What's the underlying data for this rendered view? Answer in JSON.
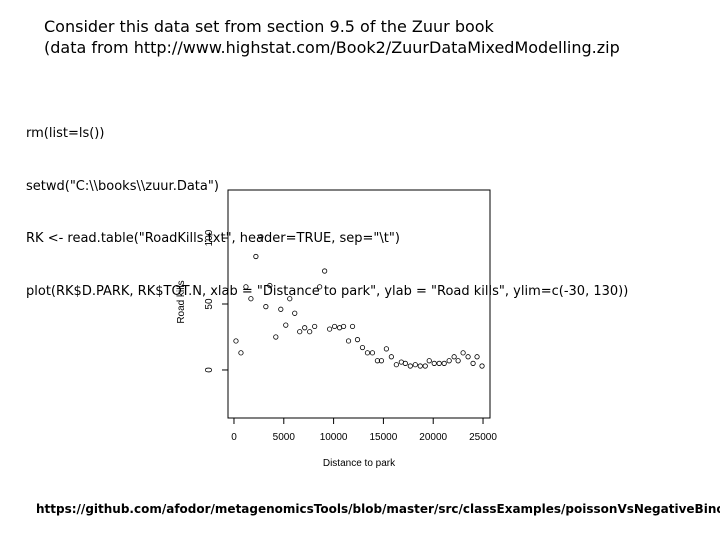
{
  "header": {
    "lines": [
      "Consider this data set from section 9.5 of the Zuur book",
      "(data from http://www.highstat.com/Book2/ZuurDataMixedModelling.zip"
    ]
  },
  "code": {
    "lines": [
      "rm(list=ls())",
      "setwd(\"C:\\\\books\\\\zuur.Data\")",
      "RK <- read.table(\"RoadKills.txt\", header=TRUE, sep=\"\\t\")",
      "plot(RK$D.PARK, RK$TOT.N, xlab = \"Distance to park\", ylab = \"Road kills\", ylim=c(-30, 130))"
    ]
  },
  "footer": {
    "link": "https://github.com/afodor/metagenomicsTools/blob/master/src/classExamples/poissonVsNegativeBinomial"
  },
  "chart_data": {
    "type": "scatter",
    "x_label": "Distance to park",
    "y_label": "Road kills",
    "xlim": [
      -600,
      25700
    ],
    "ylim": [
      -36.4,
      136.4
    ],
    "xticks": [
      0,
      5000,
      10000,
      15000,
      20000,
      25000
    ],
    "yticks": [
      0,
      50,
      100
    ],
    "color": "#000000",
    "x": [
      200,
      700,
      1200,
      1700,
      2200,
      2700,
      3200,
      3600,
      4200,
      4700,
      5200,
      5600,
      6100,
      6600,
      7100,
      7600,
      8100,
      8600,
      9100,
      9600,
      10100,
      10600,
      11000,
      11500,
      11900,
      12400,
      12900,
      13400,
      13900,
      14400,
      14800,
      15300,
      15800,
      16300,
      16800,
      17200,
      17700,
      18200,
      18700,
      19200,
      19600,
      20100,
      20600,
      21100,
      21600,
      22100,
      22500,
      23000,
      23500,
      24000,
      24400,
      24900
    ],
    "values": [
      22,
      13,
      63,
      54,
      86,
      101,
      48,
      64,
      25,
      46,
      34,
      54,
      43,
      29,
      32,
      29,
      33,
      63,
      75,
      31,
      33,
      32,
      33,
      22,
      33,
      23,
      17,
      13,
      13,
      7,
      7,
      16,
      10,
      4,
      6,
      5,
      3,
      4,
      3,
      3,
      7,
      5,
      5,
      5,
      7,
      10,
      7,
      13,
      10,
      5,
      10,
      3
    ]
  }
}
